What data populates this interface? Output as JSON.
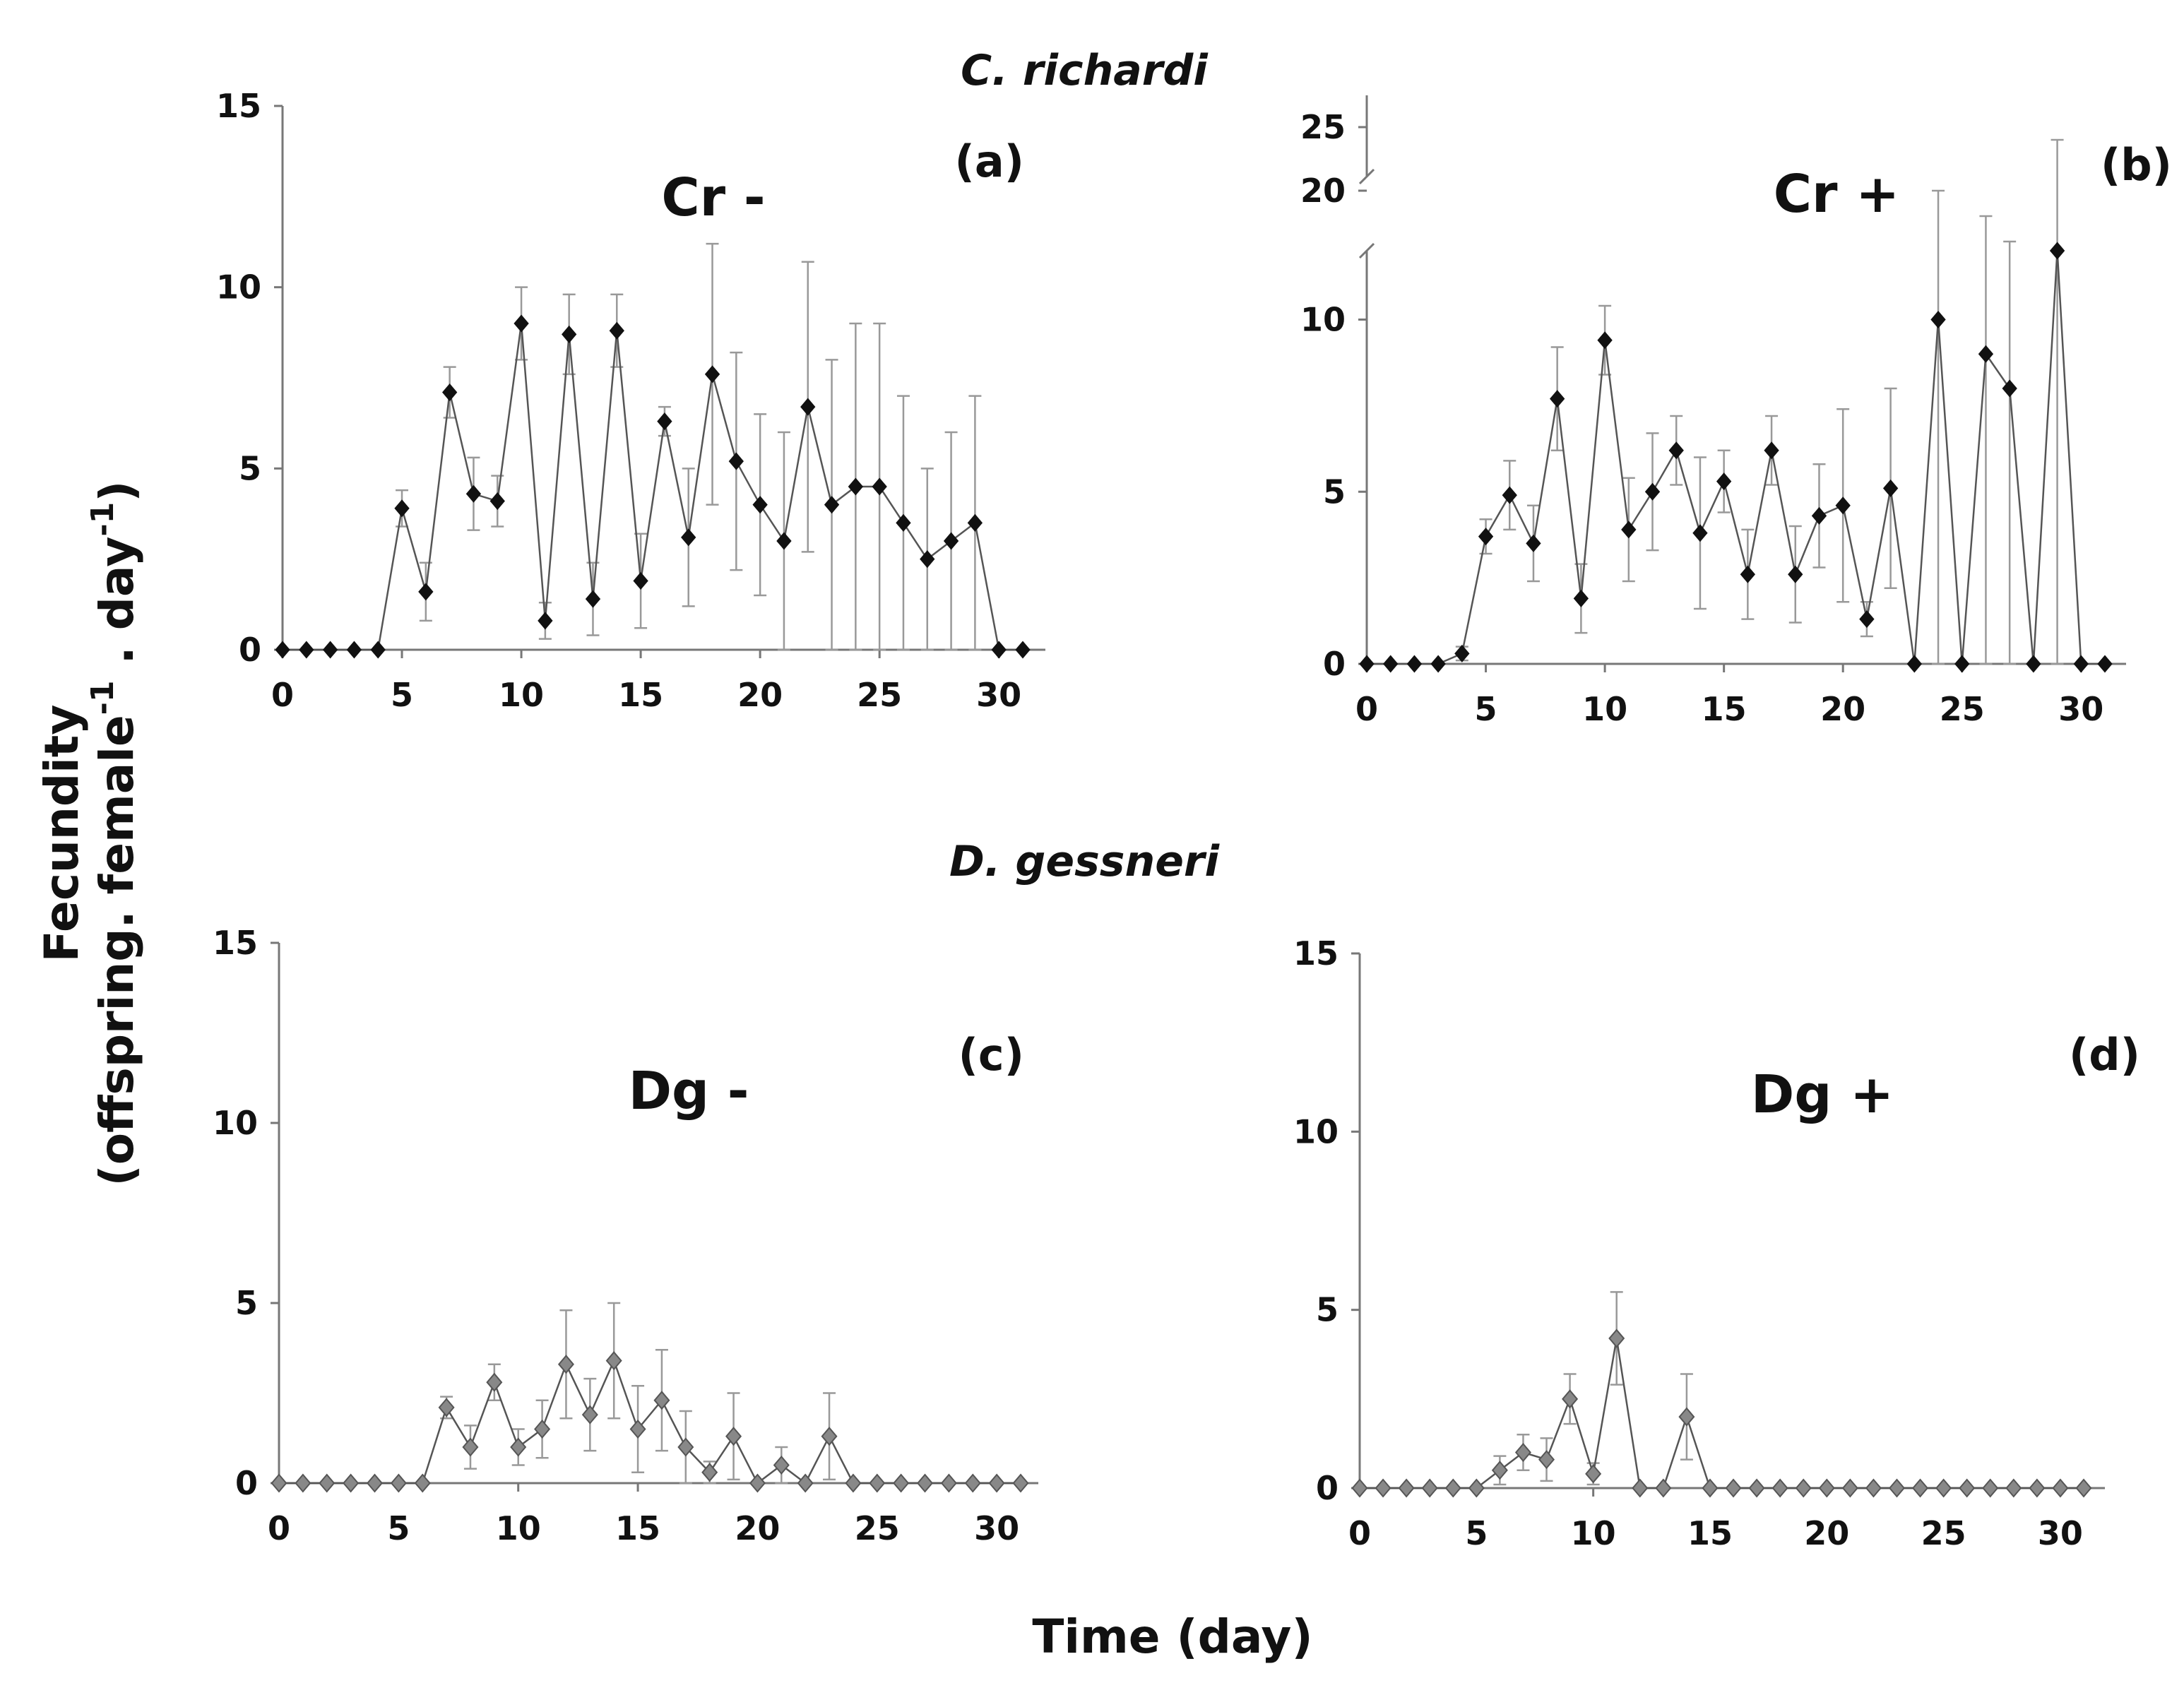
{
  "figure": {
    "species_top": "C. richardi",
    "species_bottom": "D. gessneri",
    "ylabel_line1": "Fecundity",
    "ylabel_line2": "(offspring. female",
    "ylabel_sup1": "-1",
    "ylabel_mid": " . day",
    "ylabel_sup2": "-1",
    "ylabel_end": ")",
    "xlabel": "Time (day)"
  },
  "colors": {
    "axis": "#777777",
    "error": "#999999",
    "cr_marker": "#111111",
    "dg_marker": "#888888",
    "dg_marker_edge": "#555555",
    "line": "#555555"
  },
  "chart_data": [
    {
      "type": "line",
      "panel": "(a)",
      "title": "Cr -",
      "xlim": [
        0,
        31
      ],
      "ylim": [
        0,
        15
      ],
      "xticks": [
        "0",
        "5",
        "10",
        "15",
        "20",
        "25",
        "30"
      ],
      "yticks": [
        "0",
        "5",
        "10",
        "15"
      ],
      "x": [
        0,
        1,
        2,
        3,
        4,
        5,
        6,
        7,
        8,
        9,
        10,
        11,
        12,
        13,
        14,
        15,
        16,
        17,
        18,
        19,
        20,
        21,
        22,
        23,
        24,
        25,
        26,
        27,
        28,
        29,
        30,
        31
      ],
      "values": [
        0,
        0,
        0,
        0,
        0,
        3.9,
        1.6,
        7.1,
        4.3,
        4.1,
        9.0,
        0.8,
        8.7,
        1.4,
        8.8,
        1.9,
        6.3,
        3.1,
        7.6,
        5.2,
        4.0,
        3.0,
        6.7,
        4.0,
        4.5,
        4.5,
        3.5,
        2.5,
        3.0,
        3.5,
        0,
        0
      ],
      "errors": [
        0,
        0,
        0,
        0,
        0,
        0.5,
        0.8,
        0.7,
        1.0,
        0.7,
        1.0,
        0.5,
        1.1,
        1.0,
        1.0,
        1.3,
        0.4,
        1.9,
        3.6,
        3.0,
        2.5,
        3.0,
        4.0,
        4.0,
        4.5,
        4.5,
        3.5,
        2.5,
        3.0,
        3.5,
        0,
        0
      ],
      "marker": "filled-diamond-black"
    },
    {
      "type": "line",
      "panel": "(b)",
      "title": "Cr +",
      "xlim": [
        0,
        31
      ],
      "ylim": [
        0,
        25
      ],
      "axis_break": [
        12,
        20
      ],
      "xticks": [
        "0",
        "5",
        "10",
        "15",
        "20",
        "25",
        "30"
      ],
      "yticks": [
        "0",
        "5",
        "10",
        "20",
        "25"
      ],
      "x": [
        0,
        1,
        2,
        3,
        4,
        5,
        6,
        7,
        8,
        9,
        10,
        11,
        12,
        13,
        14,
        15,
        16,
        17,
        18,
        19,
        20,
        21,
        22,
        23,
        24,
        25,
        26,
        27,
        28,
        29,
        30,
        31
      ],
      "values": [
        0,
        0,
        0,
        0,
        0.3,
        3.7,
        4.9,
        3.5,
        7.7,
        1.9,
        9.4,
        3.9,
        5.0,
        6.2,
        3.8,
        5.3,
        2.6,
        6.2,
        2.6,
        4.3,
        4.6,
        1.3,
        5.1,
        0,
        10.0,
        0,
        9.0,
        8.0,
        0,
        12.0,
        0,
        0
      ],
      "errors": [
        0,
        0,
        0,
        0,
        0.2,
        0.5,
        1.0,
        1.1,
        1.5,
        1.0,
        1.0,
        1.5,
        1.7,
        1.0,
        2.2,
        0.9,
        1.3,
        1.0,
        1.4,
        1.5,
        2.8,
        0.5,
        2.9,
        0,
        10.0,
        0,
        9.0,
        8.0,
        0,
        12.0,
        0,
        0
      ],
      "marker": "filled-diamond-black"
    },
    {
      "type": "line",
      "panel": "(c)",
      "title": "Dg -",
      "xlim": [
        0,
        31
      ],
      "ylim": [
        0,
        15
      ],
      "xticks": [
        "0",
        "5",
        "10",
        "15",
        "20",
        "25",
        "30"
      ],
      "yticks": [
        "0",
        "5",
        "10",
        "15"
      ],
      "x": [
        0,
        1,
        2,
        3,
        4,
        5,
        6,
        7,
        8,
        9,
        10,
        11,
        12,
        13,
        14,
        15,
        16,
        17,
        18,
        19,
        20,
        21,
        22,
        23,
        24,
        25,
        26,
        27,
        28,
        29,
        30,
        31
      ],
      "values": [
        0,
        0,
        0,
        0,
        0,
        0,
        0,
        2.1,
        1.0,
        2.8,
        1.0,
        1.5,
        3.3,
        1.9,
        3.4,
        1.5,
        2.3,
        1.0,
        0.3,
        1.3,
        0,
        0.5,
        0,
        1.3,
        0,
        0,
        0,
        0,
        0,
        0,
        0,
        0
      ],
      "errors": [
        0,
        0,
        0,
        0,
        0,
        0,
        0,
        0.3,
        0.6,
        0.5,
        0.5,
        0.8,
        1.5,
        1.0,
        1.6,
        1.2,
        1.4,
        1.0,
        0.3,
        1.2,
        0,
        0.5,
        0,
        1.2,
        0,
        0,
        0,
        0,
        0,
        0,
        0,
        0
      ],
      "marker": "filled-diamond-grey"
    },
    {
      "type": "line",
      "panel": "(d)",
      "title": "Dg +",
      "xlim": [
        0,
        31
      ],
      "ylim": [
        0,
        15
      ],
      "xticks": [
        "0",
        "5",
        "10",
        "15",
        "20",
        "25",
        "30"
      ],
      "yticks": [
        "0",
        "5",
        "10",
        "15"
      ],
      "x": [
        0,
        1,
        2,
        3,
        4,
        5,
        6,
        7,
        8,
        9,
        10,
        11,
        12,
        13,
        14,
        15,
        16,
        17,
        18,
        19,
        20,
        21,
        22,
        23,
        24,
        25,
        26,
        27,
        28,
        29,
        30,
        31
      ],
      "values": [
        0,
        0,
        0,
        0,
        0,
        0,
        0.5,
        1.0,
        0.8,
        2.5,
        0.4,
        4.2,
        0,
        0,
        2.0,
        0,
        0,
        0,
        0,
        0,
        0,
        0,
        0,
        0,
        0,
        0,
        0,
        0,
        0,
        0,
        0,
        0
      ],
      "errors": [
        0,
        0,
        0,
        0,
        0,
        0,
        0.4,
        0.5,
        0.6,
        0.7,
        0.3,
        1.3,
        0,
        0,
        1.2,
        0,
        0,
        0,
        0,
        0,
        0,
        0,
        0,
        0,
        0,
        0,
        0,
        0,
        0,
        0,
        0,
        0
      ],
      "marker": "filled-diamond-grey"
    }
  ]
}
